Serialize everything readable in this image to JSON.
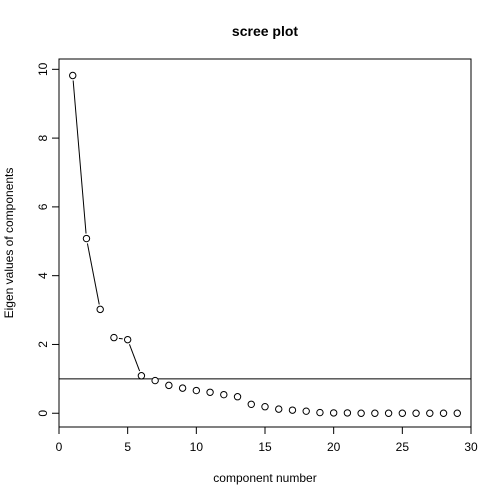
{
  "chart_data": {
    "type": "line",
    "title": "scree plot",
    "xlabel": "component number",
    "ylabel": "Eigen values of components",
    "x": [
      1,
      2,
      3,
      4,
      5,
      6,
      7,
      8,
      9,
      10,
      11,
      12,
      13,
      14,
      15,
      16,
      17,
      18,
      19,
      20,
      21,
      22,
      23,
      24,
      25,
      26,
      27,
      28,
      29
    ],
    "series": [
      {
        "values": [
          9.82,
          5.08,
          3.02,
          2.2,
          2.14,
          1.09,
          0.95,
          0.81,
          0.73,
          0.66,
          0.61,
          0.54,
          0.48,
          0.26,
          0.19,
          0.12,
          0.09,
          0.06,
          0.02,
          0.01,
          0.01,
          0.0,
          0.0,
          0.0,
          0.0,
          0.0,
          0.0,
          0.0,
          0.0
        ],
        "line_segments": [
          [
            1,
            2
          ],
          [
            2,
            3
          ],
          [
            4,
            5
          ],
          [
            5,
            6
          ]
        ]
      }
    ],
    "reference_line": {
      "orientation": "horizontal",
      "y": 1
    },
    "xlim": [
      0,
      30
    ],
    "ylim": [
      -0.4,
      10.3
    ],
    "x_ticks": [
      0,
      5,
      10,
      15,
      20,
      25,
      30
    ],
    "y_ticks": [
      0,
      2,
      4,
      6,
      8,
      10
    ],
    "grid": false,
    "marker": "open-circle"
  }
}
